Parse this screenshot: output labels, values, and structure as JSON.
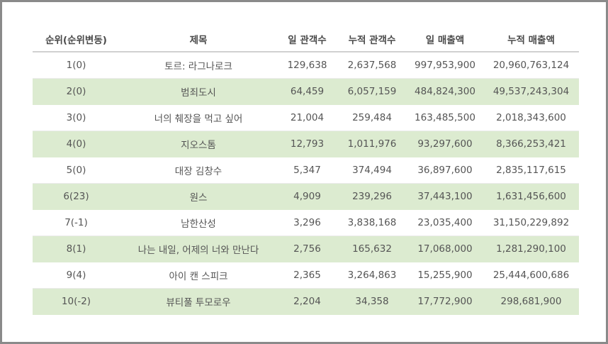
{
  "table": {
    "headers": [
      "순위(순위변동)",
      "제목",
      "일 관객수",
      "누적 관객수",
      "일 매출액",
      "누적 매출액"
    ],
    "rows": [
      [
        "1(0)",
        "토르: 라그나로크",
        "129,638",
        "2,637,568",
        "997,953,900",
        "20,960,763,124"
      ],
      [
        "2(0)",
        "범죄도시",
        "64,459",
        "6,057,159",
        "484,824,300",
        "49,537,243,304"
      ],
      [
        "3(0)",
        "너의 췌장을 먹고 싶어",
        "21,004",
        "259,484",
        "163,485,500",
        "2,018,343,600"
      ],
      [
        "4(0)",
        "지오스톰",
        "12,793",
        "1,011,976",
        "93,297,600",
        "8,366,253,421"
      ],
      [
        "5(0)",
        "대장 김창수",
        "5,347",
        "374,494",
        "36,897,600",
        "2,835,117,615"
      ],
      [
        "6(23)",
        "원스",
        "4,909",
        "239,296",
        "37,443,100",
        "1,631,456,600"
      ],
      [
        "7(-1)",
        "남한산성",
        "3,296",
        "3,838,168",
        "23,035,400",
        "31,150,229,892"
      ],
      [
        "8(1)",
        "나는 내일, 어제의 너와 만난다",
        "2,756",
        "165,632",
        "17,068,000",
        "1,281,290,100"
      ],
      [
        "9(4)",
        "아이 캔 스피크",
        "2,365",
        "3,264,863",
        "15,255,900",
        "25,444,600,686"
      ],
      [
        "10(-2)",
        "뷰티풀 투모로우",
        "2,204",
        "34,358",
        "17,772,900",
        "298,681,900"
      ]
    ]
  },
  "colors": {
    "alt_row_bg": "#dcebd0",
    "header_text": "#4a4a4a",
    "cell_text": "#555555",
    "frame_border": "#8a8a8a"
  }
}
